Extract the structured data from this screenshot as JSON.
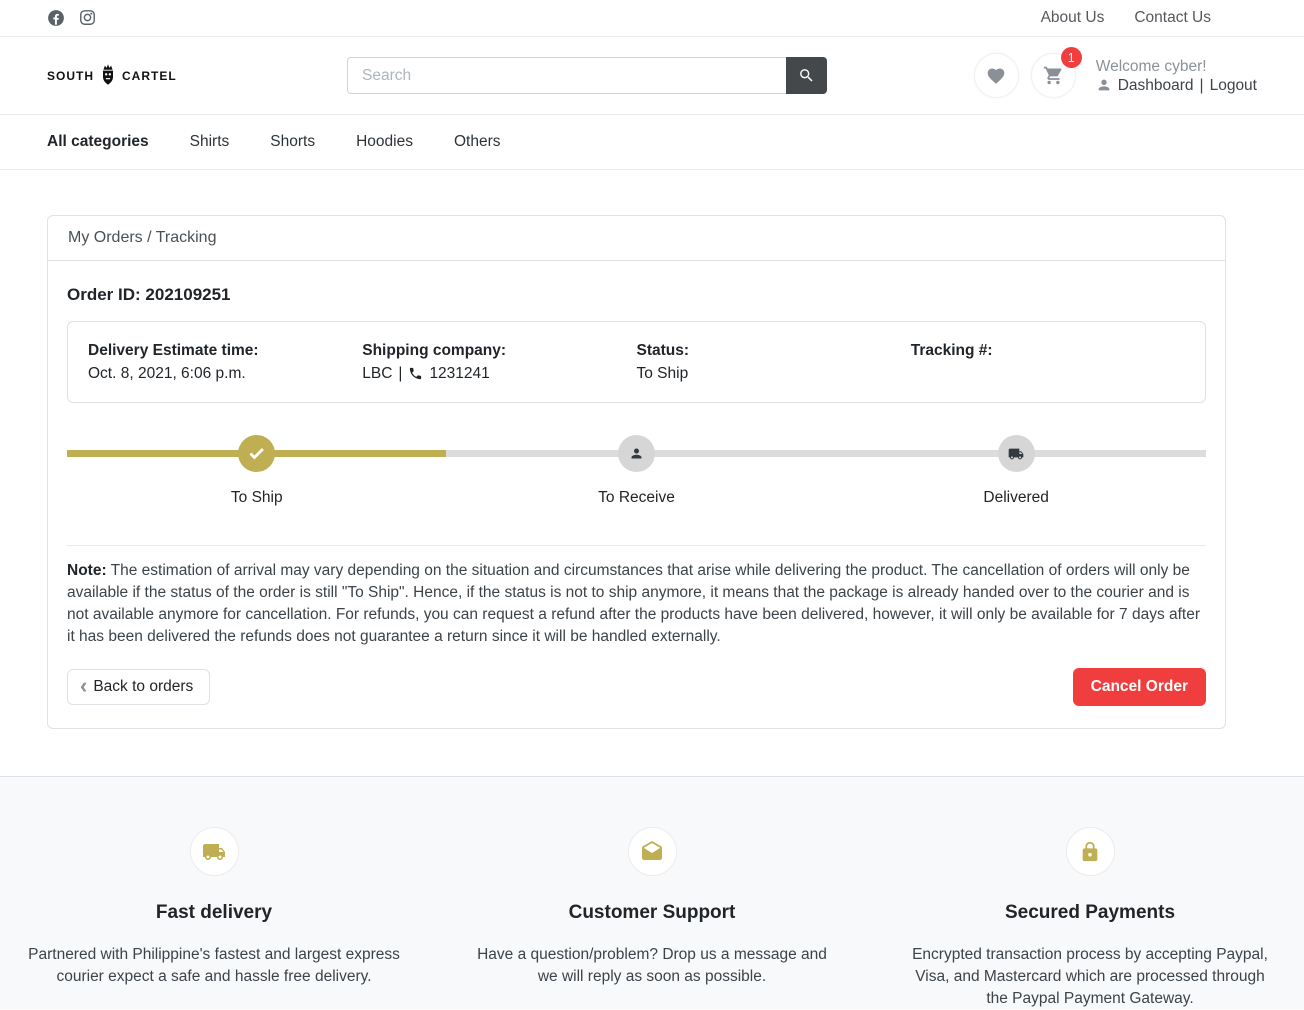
{
  "topbar": {
    "social": [
      {
        "name": "facebook"
      },
      {
        "name": "instagram"
      }
    ],
    "links": [
      {
        "label": "About Us"
      },
      {
        "label": "Contact Us"
      }
    ]
  },
  "header": {
    "logo": {
      "word1": "SOUTH",
      "word2": "CARTEL"
    },
    "search": {
      "placeholder": "Search"
    },
    "cart_count": "1",
    "welcome": "Welcome cyber!",
    "dashboard_label": "Dashboard",
    "separator": "|",
    "logout_label": "Logout"
  },
  "nav": {
    "items": [
      {
        "label": "All categories",
        "active": true
      },
      {
        "label": "Shirts",
        "active": false
      },
      {
        "label": "Shorts",
        "active": false
      },
      {
        "label": "Hoodies",
        "active": false
      },
      {
        "label": "Others",
        "active": false
      }
    ]
  },
  "tracking": {
    "breadcrumb": "My Orders / Tracking",
    "order_id_label": "Order ID:",
    "order_id": "202109251",
    "info": {
      "delivery_label": "Delivery Estimate time:",
      "delivery_value": "Oct. 8, 2021, 6:06 p.m.",
      "shipping_label": "Shipping company:",
      "shipping_company": "LBC",
      "shipping_separator": "|",
      "shipping_phone": "1231241",
      "status_label": "Status:",
      "status_value": "To Ship",
      "tracking_label": "Tracking #:",
      "tracking_value": ""
    },
    "progress": {
      "percent": 33.3,
      "steps": [
        {
          "label": "To Ship",
          "icon": "check-icon",
          "state": "done"
        },
        {
          "label": "To Receive",
          "icon": "person-icon",
          "state": "pending"
        },
        {
          "label": "Delivered",
          "icon": "truck-icon",
          "state": "pending"
        }
      ]
    },
    "note_label": "Note:",
    "note_text": "The estimation of arrival may vary depending on the situation and circumstances that arise while delivering the product. The cancellation of orders will only be available if the status of the order is still \"To Ship\". Hence, if the status is not to ship anymore, it means that the package is already handed over to the courier and is not available anymore for cancellation. For refunds, you can request a refund after the products have been delivered, however, it will only be available for 7 days after it has been delivered the refunds does not guarantee a return since it will be handled externally.",
    "back_button": "Back to orders",
    "cancel_button": "Cancel Order"
  },
  "footer": {
    "columns": [
      {
        "icon": "truck-icon",
        "title": "Fast delivery",
        "text": "Partnered with Philippine's fastest and largest express courier expect a safe and hassle free delivery."
      },
      {
        "icon": "envelope-icon",
        "title": "Customer Support",
        "text": "Have a question/problem? Drop us a message and we will reply as soon as possible."
      },
      {
        "icon": "lock-icon",
        "title": "Secured Payments",
        "text": "Encrypted transaction process by accepting Paypal, Visa, and Mastercard which are processed through the Paypal Payment Gateway."
      }
    ]
  },
  "colors": {
    "accent_gold": "#bfae52",
    "danger_red": "#f03e3e",
    "dark_text": "#212529",
    "muted_text": "#6c757d",
    "search_button": "#45484b"
  }
}
